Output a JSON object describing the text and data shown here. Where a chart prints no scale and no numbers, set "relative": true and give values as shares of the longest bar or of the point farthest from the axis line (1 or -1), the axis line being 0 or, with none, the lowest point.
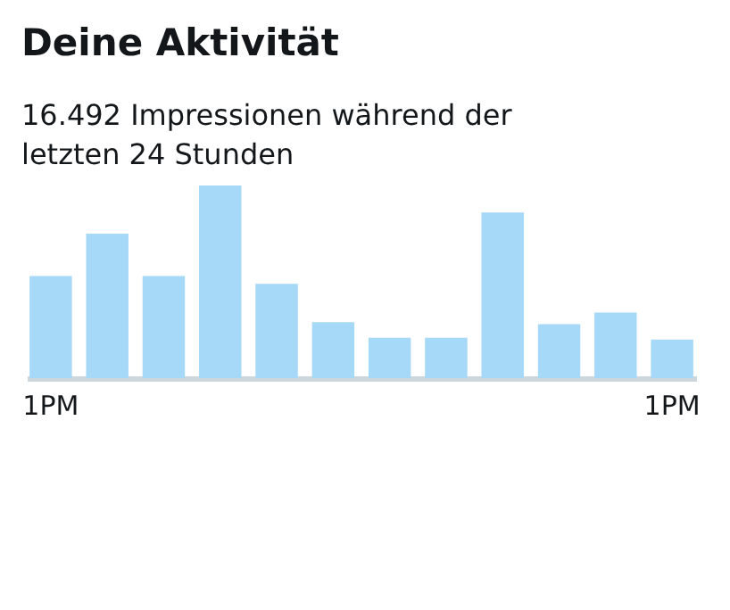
{
  "chart_data": {
    "type": "bar",
    "title": "Deine Aktivität",
    "subtitle": "16.492 Impressionen während der letzten 24 Stunden",
    "categories": [
      "1PM",
      null,
      null,
      null,
      null,
      null,
      null,
      null,
      null,
      null,
      null,
      "1PM"
    ],
    "values": [
      0.53,
      0.75,
      0.53,
      1,
      0.49,
      0.29,
      0.21,
      0.21,
      0.86,
      0.28,
      0.34,
      0.2
    ],
    "color": "#a6d8f7",
    "relative": true
  }
}
